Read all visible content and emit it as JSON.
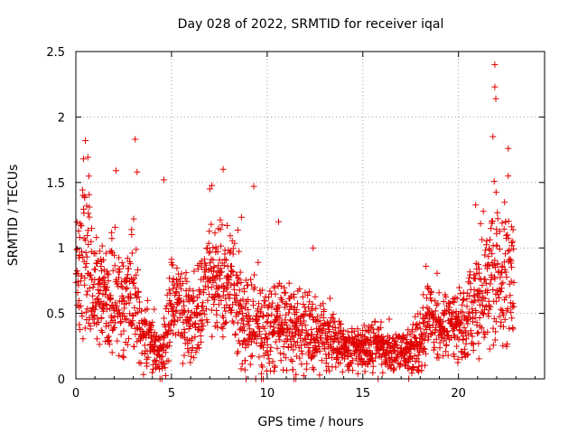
{
  "chart_data": {
    "type": "scatter",
    "title": "Day 028 of 2022, SRMTID for receiver iqal",
    "xlabel": "GPS time / hours",
    "ylabel": "SRMTID / TECUs",
    "xlim": [
      0,
      24.5
    ],
    "ylim": [
      0,
      2.5
    ],
    "xticks": [
      0,
      5,
      10,
      15,
      20
    ],
    "xtick_labels": [
      "0",
      "5",
      "10",
      "15",
      "20"
    ],
    "yticks": [
      0,
      0.5,
      1,
      1.5,
      2,
      2.5
    ],
    "ytick_labels": [
      "0",
      "0.5",
      "1",
      "1.5",
      "2",
      "2.5"
    ],
    "grid": true,
    "marker": "+",
    "color": "#e00000",
    "envelope": {
      "hours": [
        0,
        0.5,
        1,
        1.5,
        2,
        2.5,
        3,
        3.5,
        4,
        4.5,
        5,
        5.5,
        6,
        6.5,
        7,
        7.5,
        8,
        8.5,
        9,
        9.5,
        10,
        10.5,
        11,
        11.5,
        12,
        12.5,
        13,
        13.5,
        14,
        14.5,
        15,
        15.5,
        16,
        16.5,
        17,
        17.5,
        18,
        18.5,
        19,
        19.5,
        20,
        20.5,
        21,
        21.5,
        22,
        22.5,
        22.9
      ],
      "typical": [
        0.75,
        0.95,
        0.7,
        0.6,
        0.65,
        0.5,
        0.65,
        0.3,
        0.25,
        0.2,
        0.55,
        0.5,
        0.45,
        0.55,
        0.75,
        0.8,
        0.7,
        0.55,
        0.4,
        0.45,
        0.35,
        0.45,
        0.4,
        0.35,
        0.35,
        0.35,
        0.3,
        0.28,
        0.25,
        0.22,
        0.22,
        0.24,
        0.25,
        0.22,
        0.2,
        0.2,
        0.3,
        0.45,
        0.4,
        0.38,
        0.4,
        0.45,
        0.55,
        0.7,
        0.75,
        0.8,
        0.75
      ],
      "spread": [
        0.3,
        0.5,
        0.35,
        0.35,
        0.4,
        0.35,
        0.4,
        0.2,
        0.15,
        0.15,
        0.35,
        0.3,
        0.3,
        0.3,
        0.35,
        0.4,
        0.35,
        0.35,
        0.3,
        0.3,
        0.3,
        0.3,
        0.3,
        0.3,
        0.3,
        0.25,
        0.2,
        0.18,
        0.15,
        0.15,
        0.15,
        0.15,
        0.15,
        0.12,
        0.12,
        0.15,
        0.2,
        0.25,
        0.2,
        0.2,
        0.25,
        0.3,
        0.35,
        0.4,
        0.45,
        0.45,
        0.4
      ]
    },
    "sample_interval_hours": 0.0167,
    "peaks": [
      {
        "x": 0.5,
        "y": 1.82
      },
      {
        "x": 0.4,
        "y": 1.68
      },
      {
        "x": 2.1,
        "y": 1.59
      },
      {
        "x": 3.1,
        "y": 1.83
      },
      {
        "x": 3.2,
        "y": 1.58
      },
      {
        "x": 4.6,
        "y": 1.52
      },
      {
        "x": 7.0,
        "y": 1.45
      },
      {
        "x": 7.7,
        "y": 1.6
      },
      {
        "x": 9.3,
        "y": 1.47
      },
      {
        "x": 10.6,
        "y": 1.2
      },
      {
        "x": 12.4,
        "y": 1.0
      },
      {
        "x": 18.3,
        "y": 0.86
      },
      {
        "x": 21.3,
        "y": 1.28
      },
      {
        "x": 21.8,
        "y": 1.85
      },
      {
        "x": 21.9,
        "y": 2.4
      },
      {
        "x": 21.9,
        "y": 2.23
      },
      {
        "x": 21.95,
        "y": 2.14
      },
      {
        "x": 22.6,
        "y": 1.76
      },
      {
        "x": 22.6,
        "y": 1.55
      }
    ],
    "zero_points": [
      {
        "x": 4.4,
        "y": 0
      },
      {
        "x": 4.5,
        "y": 0
      },
      {
        "x": 8.9,
        "y": 0
      },
      {
        "x": 9.4,
        "y": 0
      },
      {
        "x": 9.7,
        "y": 0
      },
      {
        "x": 9.8,
        "y": 0
      },
      {
        "x": 11.4,
        "y": 0
      },
      {
        "x": 11.5,
        "y": 0
      },
      {
        "x": 15.8,
        "y": 0
      },
      {
        "x": 17.4,
        "y": 0
      }
    ]
  }
}
